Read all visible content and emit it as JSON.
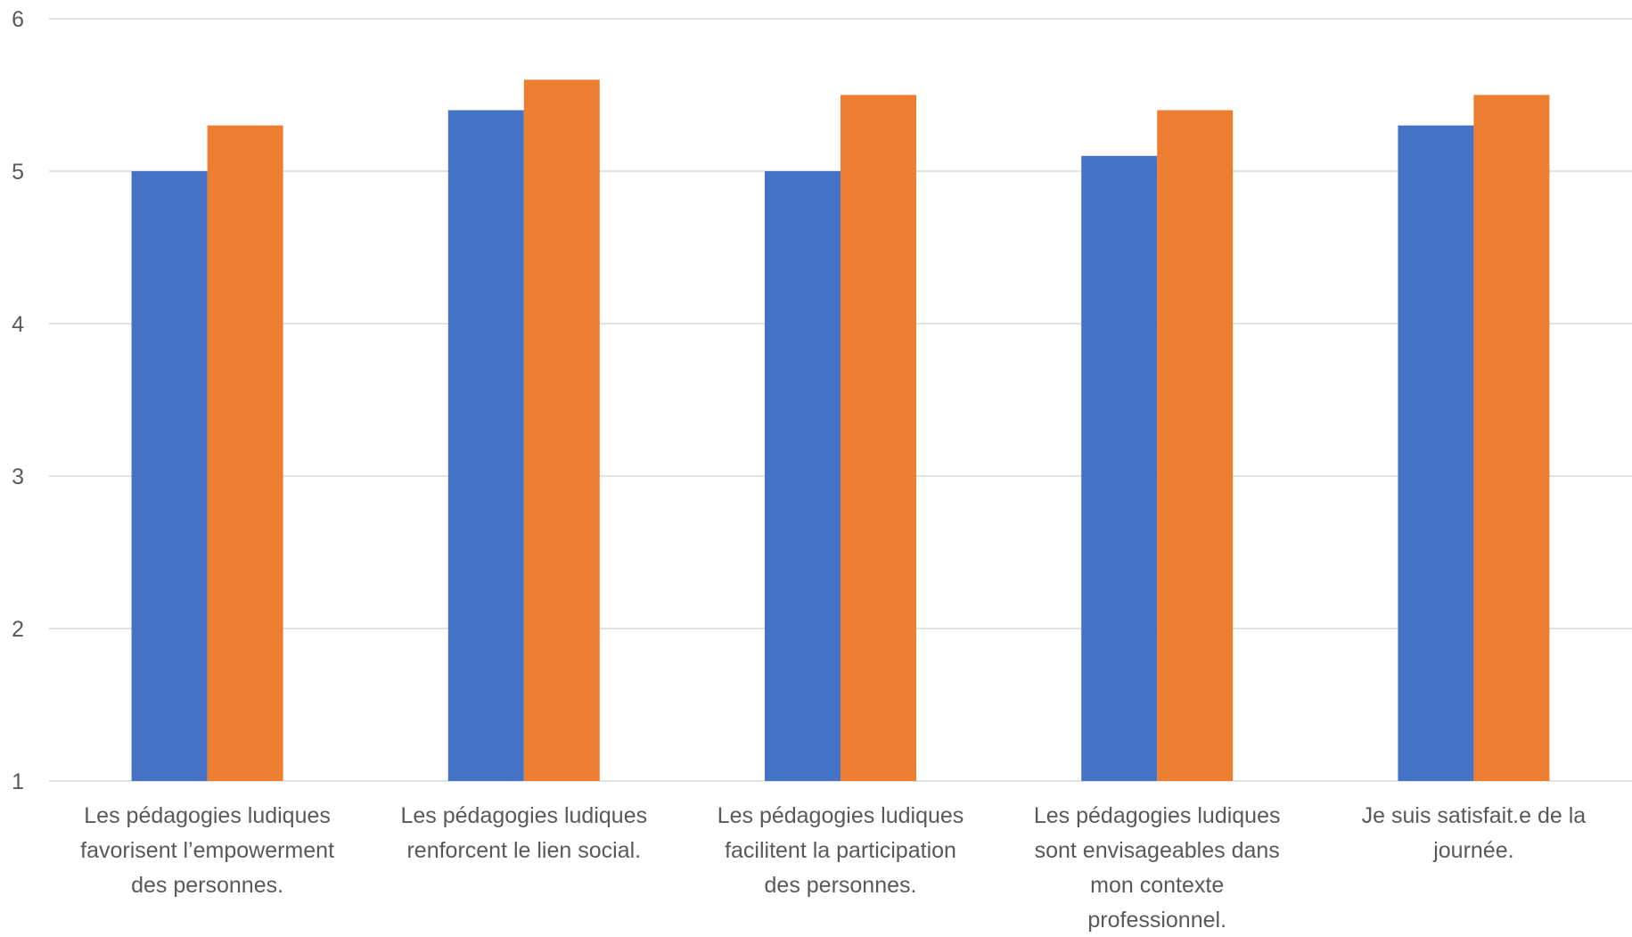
{
  "chart_data": {
    "type": "bar",
    "categories": [
      [
        "Les pédagogies ludiques",
        "favorisent l’empowerment",
        "des personnes."
      ],
      [
        "Les pédagogies ludiques",
        "renforcent le lien social."
      ],
      [
        "Les pédagogies ludiques",
        "facilitent la participation",
        "des personnes."
      ],
      [
        "Les pédagogies ludiques",
        "sont envisageables dans",
        "mon contexte",
        "professionnel."
      ],
      [
        "Je suis satisfait.e de la",
        "journée."
      ]
    ],
    "series": [
      {
        "values": [
          5.0,
          5.4,
          5.0,
          5.1,
          5.3
        ],
        "color": "#4472C4"
      },
      {
        "values": [
          5.3,
          5.6,
          5.5,
          5.4,
          5.5
        ],
        "color": "#ED7D31"
      }
    ],
    "ylim": [
      1,
      6
    ],
    "yticks": [
      1,
      2,
      3,
      4,
      5,
      6
    ],
    "grid": true,
    "title": "",
    "xlabel": "",
    "ylabel": ""
  }
}
